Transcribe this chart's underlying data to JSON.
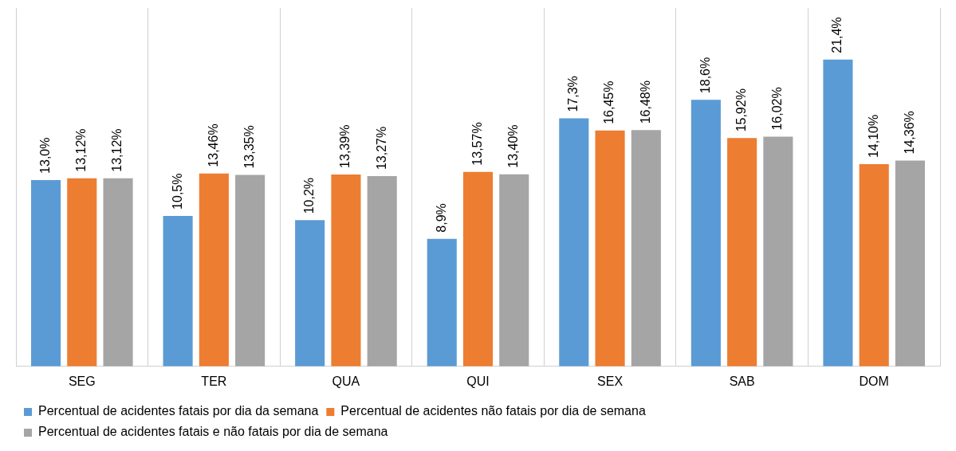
{
  "chart_data": {
    "type": "bar",
    "categories": [
      "SEG",
      "TER",
      "QUA",
      "QUI",
      "SEX",
      "SAB",
      "DOM"
    ],
    "series": [
      {
        "name": "Percentual de acidentes fatais por dia da semana",
        "color": "#5b9bd5",
        "values": [
          13.0,
          10.5,
          10.2,
          8.9,
          17.3,
          18.6,
          21.4
        ],
        "value_labels": [
          "13,0%",
          "10,5%",
          "10,2%",
          "8,9%",
          "17,3%",
          "18,6%",
          "21,4%"
        ]
      },
      {
        "name": "Percentual de acidentes não fatais por dia de semana",
        "color": "#ed7d31",
        "values": [
          13.12,
          13.46,
          13.39,
          13.57,
          16.45,
          15.92,
          14.1
        ],
        "value_labels": [
          "13,12%",
          "13,46%",
          "13,39%",
          "13,57%",
          "16,45%",
          "15,92%",
          "14,10%"
        ]
      },
      {
        "name": "Percentual de acidentes fatais e não fatais por dia de semana",
        "color": "#a5a5a5",
        "values": [
          13.12,
          13.35,
          13.27,
          13.4,
          16.48,
          16.02,
          14.36
        ],
        "value_labels": [
          "13,12%",
          "13,35%",
          "13,27%",
          "13,40%",
          "16,48%",
          "16,02%",
          "14,36%"
        ]
      }
    ],
    "grid": "x",
    "legend": "bottom"
  }
}
